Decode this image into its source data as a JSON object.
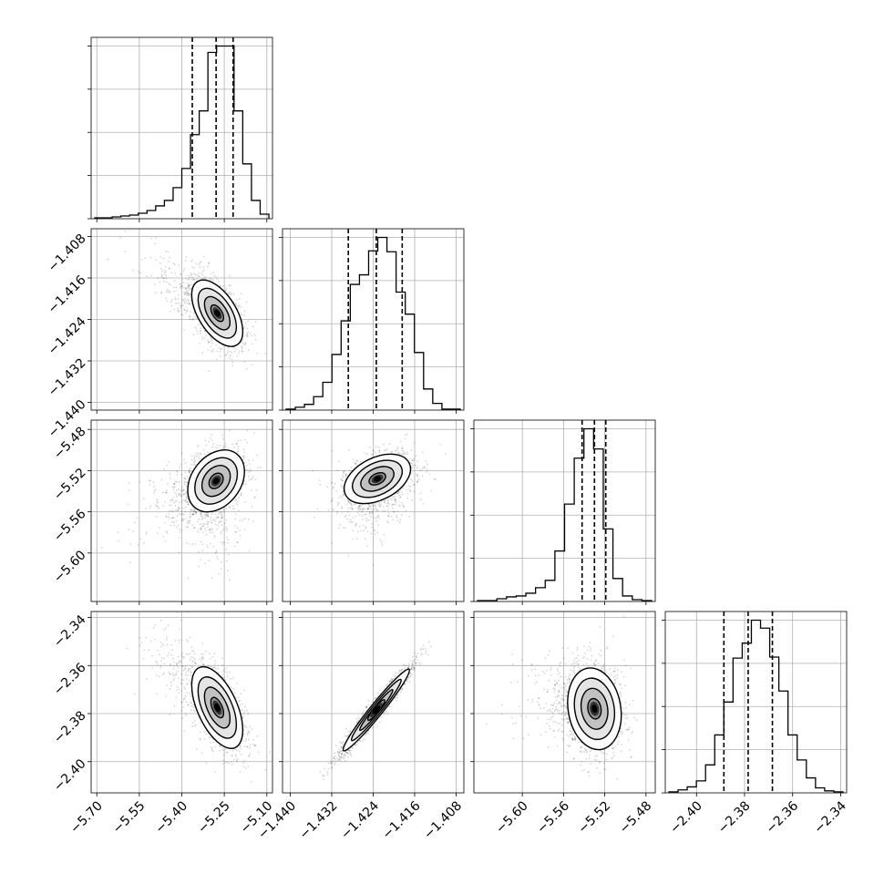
{
  "chart_data": {
    "type": "corner",
    "grid": true,
    "params": [
      {
        "range": [
          -5.72,
          -5.08
        ],
        "ticks": [
          {
            "v": -5.7,
            "label": "−5.70"
          },
          {
            "v": -5.55,
            "label": "−5.55"
          },
          {
            "v": -5.4,
            "label": "−5.40"
          },
          {
            "v": -5.25,
            "label": "−5.25"
          },
          {
            "v": -5.1,
            "label": "−5.10"
          }
        ],
        "quantiles": [
          -5.363,
          -5.279,
          -5.219
        ],
        "hist": [
          1,
          1,
          2,
          3,
          4,
          6,
          9,
          14,
          20,
          34,
          55,
          92,
          118,
          182,
          189,
          189,
          118,
          60,
          20,
          5
        ]
      },
      {
        "range": [
          -1.4415,
          -1.4065
        ],
        "ticks": [
          {
            "v": -1.44,
            "label": "−1.440"
          },
          {
            "v": -1.432,
            "label": "−1.432"
          },
          {
            "v": -1.424,
            "label": "−1.424"
          },
          {
            "v": -1.416,
            "label": "−1.416"
          },
          {
            "v": -1.408,
            "label": "−1.408"
          }
        ],
        "quantiles": [
          -1.4288,
          -1.4234,
          -1.4184
        ],
        "hist": [
          1,
          3,
          6,
          14,
          29,
          58,
          93,
          131,
          141,
          166,
          180,
          165,
          123,
          100,
          60,
          22,
          7,
          1,
          1
        ]
      },
      {
        "range": [
          -5.647,
          -5.471
        ],
        "ticks": [
          {
            "v": -5.6,
            "label": "−5.60"
          },
          {
            "v": -5.56,
            "label": "−5.56"
          },
          {
            "v": -5.52,
            "label": "−5.52"
          },
          {
            "v": -5.48,
            "label": "−5.48"
          }
        ],
        "quantiles": [
          -5.542,
          -5.53,
          -5.519
        ],
        "hist": [
          1,
          1,
          3,
          5,
          6,
          9,
          15,
          23,
          55,
          106,
          156,
          188,
          166,
          79,
          25,
          6,
          2,
          1
        ]
      },
      {
        "range": [
          -2.413,
          -2.3375
        ],
        "ticks": [
          {
            "v": -2.4,
            "label": "−2.40"
          },
          {
            "v": -2.38,
            "label": "−2.38"
          },
          {
            "v": -2.36,
            "label": "−2.36"
          },
          {
            "v": -2.34,
            "label": "−2.34"
          }
        ],
        "quantiles": [
          -2.3886,
          -2.3785,
          -2.3684
        ],
        "hist": [
          1,
          3,
          6,
          12,
          28,
          58,
          91,
          135,
          150,
          173,
          165,
          136,
          102,
          58,
          33,
          15,
          5,
          2,
          1
        ]
      }
    ],
    "pairs": [
      {
        "row": 1,
        "col": 0,
        "mean": [
          -5.275,
          -1.4228
        ],
        "sd": [
          0.045,
          0.0032
        ],
        "corr": -0.55,
        "skew": [
          -1.2,
          0
        ]
      },
      {
        "row": 2,
        "col": 0,
        "mean": [
          -5.279,
          -5.53
        ],
        "sd": [
          0.05,
          0.015
        ],
        "corr": 0.3,
        "skew": [
          -1.2,
          -0.9
        ]
      },
      {
        "row": 2,
        "col": 1,
        "mean": [
          -1.4232,
          -5.528
        ],
        "sd": [
          0.0032,
          0.012
        ],
        "corr": 0.4,
        "skew": [
          0,
          -1.0
        ]
      },
      {
        "row": 3,
        "col": 0,
        "mean": [
          -5.275,
          -2.3775
        ],
        "sd": [
          0.045,
          0.0085
        ],
        "corr": -0.55,
        "skew": [
          -1.2,
          0
        ]
      },
      {
        "row": 3,
        "col": 1,
        "mean": [
          -1.4234,
          -2.3785
        ],
        "sd": [
          0.0032,
          0.0085
        ],
        "corr": 0.97,
        "skew": [
          0,
          0
        ]
      },
      {
        "row": 3,
        "col": 2,
        "mean": [
          -5.53,
          -2.378
        ],
        "sd": [
          0.013,
          0.0085
        ],
        "corr": -0.15,
        "skew": [
          -1.0,
          0
        ]
      }
    ]
  }
}
